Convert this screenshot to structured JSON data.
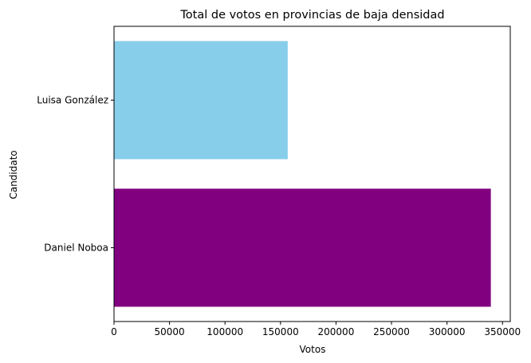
{
  "chart_data": {
    "type": "bar",
    "orientation": "horizontal",
    "title": "Total de votos en provincias de baja densidad",
    "xlabel": "Votos",
    "ylabel": "Candidato",
    "categories": [
      "Daniel Noboa",
      "Luisa González"
    ],
    "values": [
      339500,
      156500
    ],
    "colors": [
      "#800080",
      "#87ceeb"
    ],
    "xlim": [
      0,
      357000
    ],
    "xticks": [
      0,
      50000,
      100000,
      150000,
      200000,
      250000,
      300000,
      350000
    ],
    "xtick_labels": [
      "0",
      "50000",
      "100000",
      "150000",
      "200000",
      "250000",
      "300000",
      "350000"
    ],
    "grid": false,
    "legend": "none"
  }
}
